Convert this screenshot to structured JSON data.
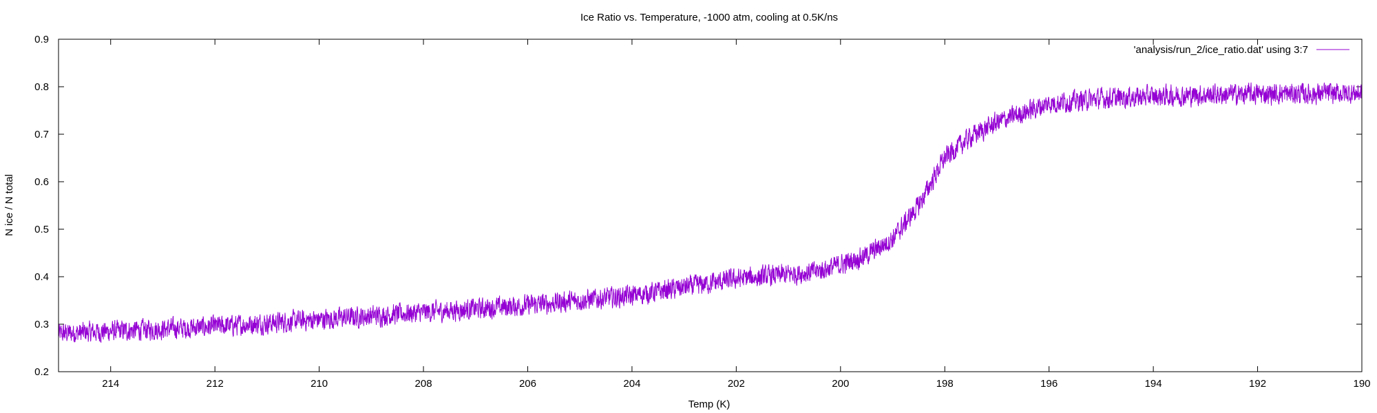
{
  "chart_data": {
    "type": "line",
    "title": "Ice Ratio vs. Temperature, -1000 atm, cooling at 0.5K/ns",
    "xlabel": "Temp (K)",
    "ylabel": "N ice / N total",
    "xlim": [
      215,
      190
    ],
    "ylim": [
      0.2,
      0.9
    ],
    "x_reversed": true,
    "xticks": [
      214,
      212,
      210,
      208,
      206,
      204,
      202,
      200,
      198,
      196,
      194,
      192,
      190
    ],
    "yticks": [
      0.2,
      0.3,
      0.4,
      0.5,
      0.6,
      0.7,
      0.8,
      0.9
    ],
    "legend_position": "top-right",
    "grid": false,
    "series": [
      {
        "name": "'analysis/run_2/ice_ratio.dat' using 3:7",
        "color": "#9400d3",
        "noise_amplitude": 0.012,
        "trend_x": [
          215,
          214,
          212,
          210,
          208,
          206,
          204,
          202,
          200.5,
          200,
          199.5,
          199,
          198.5,
          198,
          197.5,
          197,
          196.5,
          196,
          195,
          194,
          193,
          192,
          191,
          190
        ],
        "trend_y": [
          0.28,
          0.285,
          0.295,
          0.31,
          0.325,
          0.34,
          0.36,
          0.395,
          0.41,
          0.425,
          0.445,
          0.48,
          0.55,
          0.65,
          0.695,
          0.725,
          0.745,
          0.765,
          0.775,
          0.78,
          0.783,
          0.785,
          0.785,
          0.787
        ]
      }
    ]
  }
}
